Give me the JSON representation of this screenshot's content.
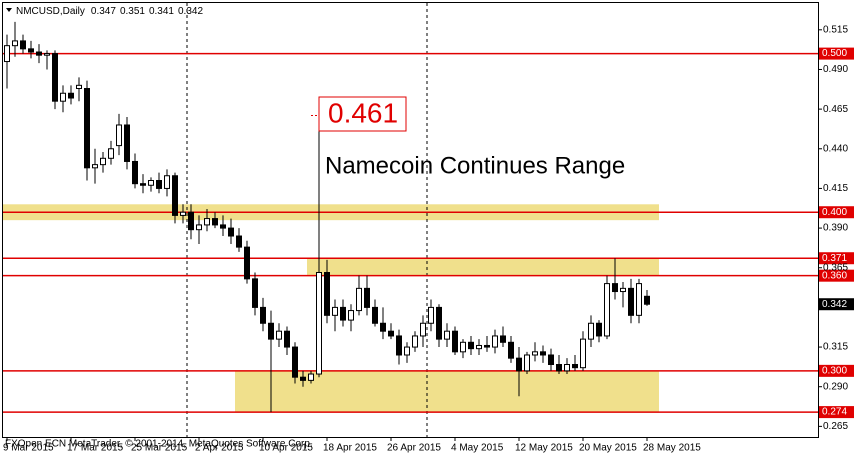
{
  "chart_data": {
    "type": "candlestick",
    "symbol": "NMCUSD,Daily",
    "footer": "FXOpen ECN MetaTrader, © 2001-2014, MetaQuotes Software Corp.",
    "annotations": [
      "Namecoin Continues Range"
    ],
    "period_separators": true,
    "up_color": "#ffffff",
    "down_color": "#000000",
    "level_color": "#e00000",
    "zone_color": "#f0e08c",
    "x": [
      "2015-03-09",
      "2015-03-10",
      "2015-03-11",
      "2015-03-12",
      "2015-03-13",
      "2015-03-14",
      "2015-03-15",
      "2015-03-16",
      "2015-03-17",
      "2015-03-18",
      "2015-03-19",
      "2015-03-20",
      "2015-03-21",
      "2015-03-22",
      "2015-03-23",
      "2015-03-24",
      "2015-03-25",
      "2015-03-26",
      "2015-03-27",
      "2015-03-28",
      "2015-03-29",
      "2015-03-30",
      "2015-03-31",
      "2015-04-01",
      "2015-04-02",
      "2015-04-03",
      "2015-04-04",
      "2015-04-05",
      "2015-04-06",
      "2015-04-07",
      "2015-04-08",
      "2015-04-09",
      "2015-04-10",
      "2015-04-11",
      "2015-04-12",
      "2015-04-13",
      "2015-04-14",
      "2015-04-15",
      "2015-04-16",
      "2015-04-17",
      "2015-04-18",
      "2015-04-19",
      "2015-04-20",
      "2015-04-21",
      "2015-04-22",
      "2015-04-23",
      "2015-04-24",
      "2015-04-25",
      "2015-04-26",
      "2015-04-27",
      "2015-04-28",
      "2015-04-29",
      "2015-04-30",
      "2015-05-01",
      "2015-05-02",
      "2015-05-03",
      "2015-05-04",
      "2015-05-05",
      "2015-05-06",
      "2015-05-07",
      "2015-05-08",
      "2015-05-09",
      "2015-05-10",
      "2015-05-11",
      "2015-05-12",
      "2015-05-13",
      "2015-05-14",
      "2015-05-15",
      "2015-05-16",
      "2015-05-17",
      "2015-05-18",
      "2015-05-19",
      "2015-05-20",
      "2015-05-21",
      "2015-05-22",
      "2015-05-23",
      "2015-05-24",
      "2015-05-25",
      "2015-05-26",
      "2015-05-27",
      "2015-05-28"
    ],
    "open": [
      0.495,
      0.505,
      0.508,
      0.503,
      0.501,
      0.499,
      0.5,
      0.47,
      0.475,
      0.478,
      0.478,
      0.428,
      0.43,
      0.434,
      0.442,
      0.455,
      0.432,
      0.418,
      0.417,
      0.42,
      0.415,
      0.423,
      0.398,
      0.4,
      0.389,
      0.392,
      0.396,
      0.392,
      0.39,
      0.385,
      0.378,
      0.358,
      0.34,
      0.33,
      0.32,
      0.325,
      0.315,
      0.296,
      0.294,
      0.298,
      0.362,
      0.335,
      0.34,
      0.332,
      0.338,
      0.352,
      0.34,
      0.33,
      0.325,
      0.322,
      0.31,
      0.315,
      0.322,
      0.33,
      0.34,
      0.32,
      0.325,
      0.312,
      0.318,
      0.314,
      0.316,
      0.315,
      0.322,
      0.318,
      0.308,
      0.3,
      0.31,
      0.312,
      0.31,
      0.304,
      0.3,
      0.304,
      0.302,
      0.32,
      0.33,
      0.322,
      0.355,
      0.35,
      0.352,
      0.335,
      0.347
    ],
    "high": [
      0.512,
      0.52,
      0.512,
      0.508,
      0.506,
      0.502,
      0.502,
      0.48,
      0.48,
      0.485,
      0.483,
      0.44,
      0.438,
      0.445,
      0.462,
      0.46,
      0.437,
      0.424,
      0.422,
      0.425,
      0.427,
      0.425,
      0.405,
      0.405,
      0.398,
      0.402,
      0.4,
      0.398,
      0.396,
      0.39,
      0.382,
      0.362,
      0.346,
      0.338,
      0.33,
      0.328,
      0.318,
      0.3,
      0.3,
      0.461,
      0.37,
      0.345,
      0.345,
      0.342,
      0.36,
      0.36,
      0.345,
      0.34,
      0.33,
      0.326,
      0.318,
      0.325,
      0.335,
      0.345,
      0.342,
      0.33,
      0.328,
      0.32,
      0.322,
      0.32,
      0.322,
      0.326,
      0.328,
      0.322,
      0.315,
      0.312,
      0.318,
      0.316,
      0.314,
      0.31,
      0.308,
      0.31,
      0.325,
      0.335,
      0.332,
      0.36,
      0.371,
      0.356,
      0.358,
      0.358,
      0.351
    ],
    "low": [
      0.478,
      0.498,
      0.5,
      0.497,
      0.494,
      0.49,
      0.465,
      0.463,
      0.468,
      0.47,
      0.42,
      0.418,
      0.425,
      0.43,
      0.436,
      0.427,
      0.415,
      0.412,
      0.413,
      0.412,
      0.41,
      0.393,
      0.393,
      0.383,
      0.38,
      0.388,
      0.39,
      0.385,
      0.38,
      0.375,
      0.355,
      0.335,
      0.325,
      0.274,
      0.315,
      0.31,
      0.292,
      0.29,
      0.292,
      0.296,
      0.33,
      0.325,
      0.328,
      0.325,
      0.335,
      0.335,
      0.328,
      0.32,
      0.32,
      0.304,
      0.305,
      0.312,
      0.315,
      0.325,
      0.315,
      0.315,
      0.31,
      0.308,
      0.31,
      0.31,
      0.312,
      0.311,
      0.315,
      0.305,
      0.284,
      0.298,
      0.306,
      0.305,
      0.3,
      0.298,
      0.298,
      0.3,
      0.3,
      0.315,
      0.318,
      0.32,
      0.345,
      0.34,
      0.33,
      0.33,
      0.341
    ],
    "close": [
      0.505,
      0.508,
      0.503,
      0.501,
      0.499,
      0.5,
      0.47,
      0.475,
      0.472,
      0.48,
      0.428,
      0.43,
      0.434,
      0.44,
      0.455,
      0.432,
      0.418,
      0.417,
      0.42,
      0.415,
      0.423,
      0.398,
      0.4,
      0.389,
      0.392,
      0.396,
      0.392,
      0.39,
      0.385,
      0.378,
      0.358,
      0.34,
      0.33,
      0.32,
      0.325,
      0.315,
      0.296,
      0.294,
      0.298,
      0.362,
      0.335,
      0.34,
      0.332,
      0.338,
      0.352,
      0.34,
      0.33,
      0.325,
      0.322,
      0.31,
      0.315,
      0.322,
      0.33,
      0.34,
      0.32,
      0.325,
      0.312,
      0.318,
      0.314,
      0.316,
      0.315,
      0.322,
      0.318,
      0.308,
      0.3,
      0.31,
      0.312,
      0.31,
      0.304,
      0.3,
      0.304,
      0.302,
      0.32,
      0.33,
      0.322,
      0.355,
      0.35,
      0.352,
      0.335,
      0.355,
      0.342
    ],
    "ylim": [
      0.2583,
      0.5319
    ],
    "yticks": [
      {
        "value": 0.515,
        "label": "0.515"
      },
      {
        "value": 0.49,
        "label": "0.490"
      },
      {
        "value": 0.465,
        "label": "0.465"
      },
      {
        "value": 0.44,
        "label": "0.440"
      },
      {
        "value": 0.415,
        "label": "0.415"
      },
      {
        "value": 0.39,
        "label": "0.390"
      },
      {
        "value": 0.365,
        "label": "0.365"
      },
      {
        "value": 0.34,
        "label": "0.340"
      },
      {
        "value": 0.315,
        "label": "0.315"
      },
      {
        "value": 0.29,
        "label": "0.290"
      },
      {
        "value": 0.265,
        "label": "0.265"
      }
    ],
    "xticks": [
      {
        "value": "2015-03-09",
        "label": "9 Mar 2015"
      },
      {
        "value": "2015-03-17",
        "label": "17 Mar 2015"
      },
      {
        "value": "2015-03-25",
        "label": "25 Mar 2015"
      },
      {
        "value": "2015-04-02",
        "label": "2 Apr 2015"
      },
      {
        "value": "2015-04-10",
        "label": "10 Apr 2015"
      },
      {
        "value": "2015-04-18",
        "label": "18 Apr 2015"
      },
      {
        "value": "2015-04-26",
        "label": "26 Apr 2015"
      },
      {
        "value": "2015-05-04",
        "label": "4 May 2015"
      },
      {
        "value": "2015-05-12",
        "label": "12 May 2015"
      },
      {
        "value": "2015-05-20",
        "label": "20 May 2015"
      },
      {
        "value": "2015-05-28",
        "label": "28 May 2015"
      }
    ],
    "levels": [
      {
        "value": 0.5,
        "label": "0.500"
      },
      {
        "value": 0.4,
        "label": "0.400"
      },
      {
        "value": 0.371,
        "label": "0.371"
      },
      {
        "value": 0.36,
        "label": "0.360"
      },
      {
        "value": 0.3,
        "label": "0.300"
      },
      {
        "value": 0.274,
        "label": "0.274"
      }
    ],
    "zones": [
      {
        "start": "2015-03-09",
        "end": "2015-05-30",
        "ymin": 0.395,
        "ymax": 0.405
      },
      {
        "start": "2015-04-16",
        "end": "2015-05-30",
        "ymin": 0.36,
        "ymax": 0.371
      },
      {
        "start": "2015-04-07",
        "end": "2015-05-30",
        "ymin": 0.274,
        "ymax": 0.3
      }
    ],
    "callout": {
      "index": 39,
      "field": "high"
    }
  }
}
